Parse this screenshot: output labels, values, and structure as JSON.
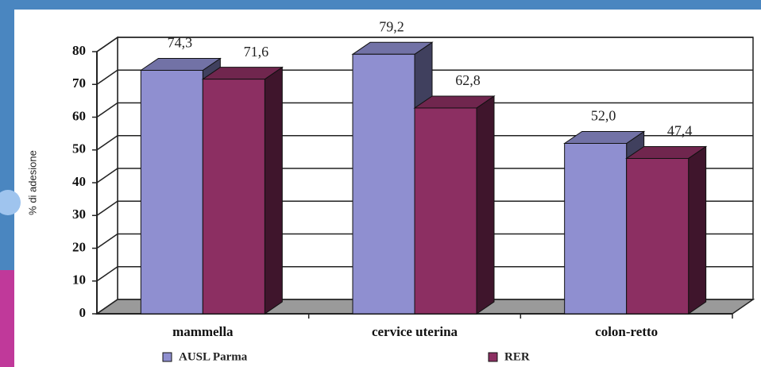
{
  "chart_data": {
    "type": "bar3d",
    "y_label": "% di adesione",
    "categories": [
      "mammella",
      "cervice uterina",
      "colon-retto"
    ],
    "series": [
      {
        "name": "AUSL Parma",
        "color": "#8f8fd0",
        "values": [
          74.3,
          79.2,
          52.0
        ],
        "value_labels": [
          "74,3",
          "79,2",
          "52,0"
        ]
      },
      {
        "name": "RER",
        "color": "#8c2f62",
        "values": [
          71.6,
          62.8,
          47.4
        ],
        "value_labels": [
          "71,6",
          "62,8",
          "47,4"
        ]
      }
    ],
    "ylim": [
      0,
      80
    ],
    "yticks": [
      0,
      10,
      20,
      30,
      40,
      50,
      60,
      70,
      80
    ],
    "grid": true
  }
}
